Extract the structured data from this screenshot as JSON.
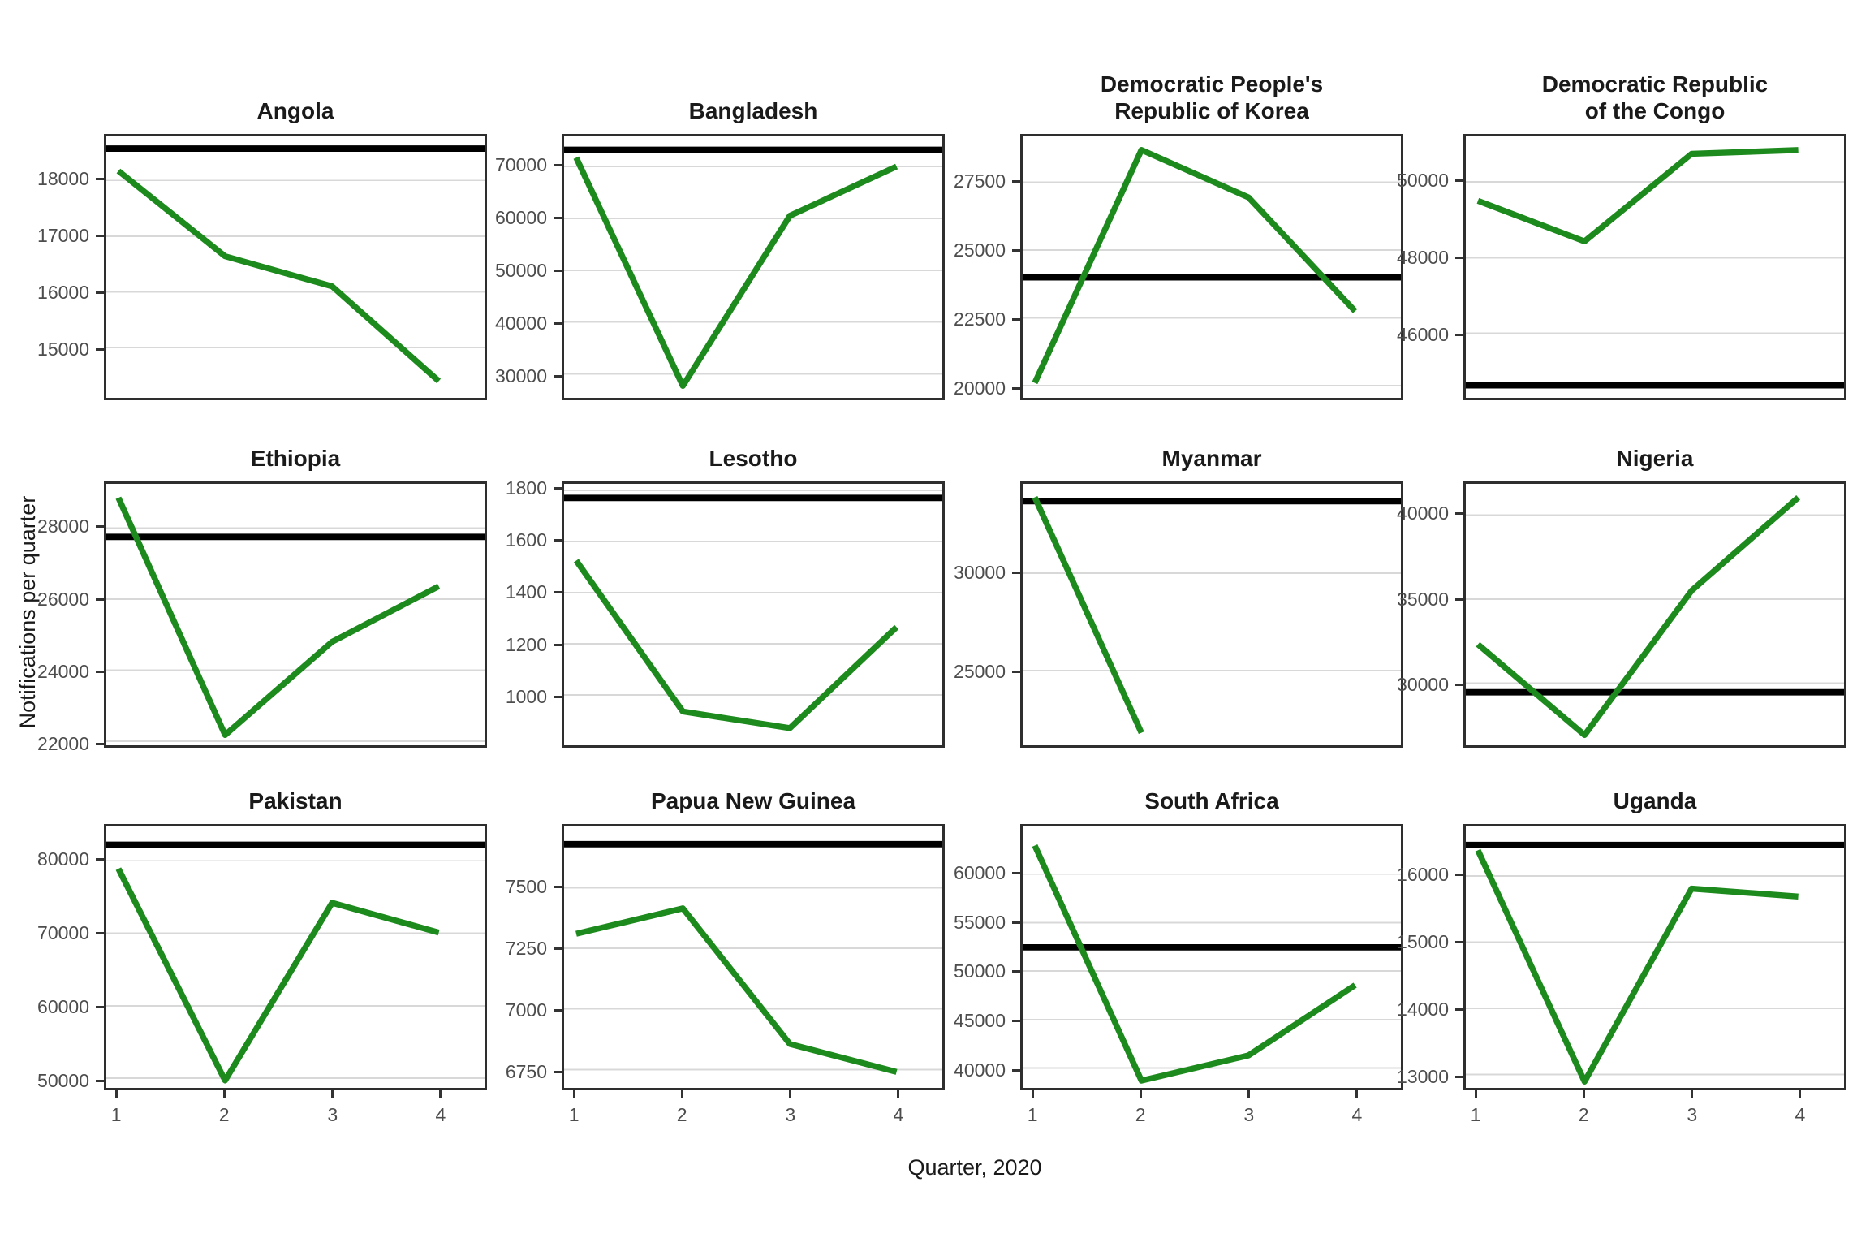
{
  "figure": {
    "y_axis_label": "Notifications per quarter",
    "x_axis_label": "Quarter, 2020",
    "line_color": "#1d8a1d",
    "reference_line_color": "#000000",
    "gridline_color": "#d8d8d8",
    "tick_color": "#333333"
  },
  "chart_data": {
    "type": "line",
    "x": [
      1,
      2,
      3,
      4
    ],
    "x_tick_labels": [
      "1",
      "2",
      "3",
      "4"
    ],
    "xlabel": "Quarter, 2020",
    "ylabel": "Notifications per quarter",
    "grid": "horizontal-only",
    "legend": "none",
    "series_description": "Green line = quarterly TB notifications in 2020; black horizontal line = pre-2020 average reference level",
    "facets": [
      {
        "title": "Angola",
        "values": [
          18170,
          16640,
          16100,
          14400
        ],
        "reference_line": 18570,
        "ylim": [
          14100,
          18790
        ],
        "yticks": [
          15000,
          16000,
          17000,
          18000
        ]
      },
      {
        "title": "Bangladesh",
        "values": [
          71700,
          27700,
          60500,
          70000
        ],
        "reference_line": 73200,
        "ylim": [
          25400,
          75800
        ],
        "yticks": [
          30000,
          40000,
          50000,
          60000,
          70000
        ]
      },
      {
        "title": "Democratic People's\nRepublic of Korea",
        "values": [
          20100,
          28700,
          26950,
          22750
        ],
        "reference_line": 24000,
        "ylim": [
          19550,
          29200
        ],
        "yticks": [
          20000,
          22500,
          25000,
          27500
        ]
      },
      {
        "title": "Democratic Republic\nof the Congo",
        "values": [
          49500,
          48430,
          50740,
          50840
        ],
        "reference_line": 44630,
        "ylim": [
          44300,
          51200
        ],
        "yticks": [
          46000,
          48000,
          50000
        ]
      },
      {
        "title": "Ethiopia",
        "values": [
          28850,
          22180,
          24800,
          26360
        ],
        "reference_line": 27750,
        "ylim": [
          21890,
          29240
        ],
        "yticks": [
          22000,
          24000,
          26000,
          28000
        ]
      },
      {
        "title": "Lesotho",
        "values": [
          1525,
          935,
          870,
          1265
        ],
        "reference_line": 1770,
        "ylim": [
          803,
          1825
        ],
        "yticks": [
          1000,
          1200,
          1400,
          1600,
          1800
        ]
      },
      {
        "title": "Myanmar",
        "values": [
          33900,
          21800,
          null,
          null
        ],
        "reference_line": 33700,
        "ylim": [
          21160,
          34590
        ],
        "yticks": [
          25000,
          30000
        ]
      },
      {
        "title": "Nigeria",
        "values": [
          32300,
          26900,
          35500,
          41050
        ],
        "reference_line": 29450,
        "ylim": [
          26290,
          41860
        ],
        "yticks": [
          30000,
          35000,
          40000
        ]
      },
      {
        "title": "Pakistan",
        "values": [
          78900,
          49700,
          74200,
          70100
        ],
        "reference_line": 82200,
        "ylim": [
          48680,
          84730
        ],
        "yticks": [
          50000,
          60000,
          70000,
          80000
        ]
      },
      {
        "title": "Papua New Guinea",
        "values": [
          7310,
          7415,
          6855,
          6740
        ],
        "reference_line": 7680,
        "ylim": [
          6674,
          7753
        ],
        "yticks": [
          6750,
          7000,
          7250,
          7500
        ]
      },
      {
        "title": "South Africa",
        "values": [
          62950,
          38700,
          41300,
          48550
        ],
        "reference_line": 52450,
        "ylim": [
          37950,
          64920
        ],
        "yticks": [
          40000,
          45000,
          50000,
          55000,
          60000
        ]
      },
      {
        "title": "Uganda",
        "values": [
          16390,
          12890,
          15810,
          15690
        ],
        "reference_line": 16470,
        "ylim": [
          12795,
          16750
        ],
        "yticks": [
          13000,
          14000,
          15000,
          16000
        ]
      }
    ]
  }
}
